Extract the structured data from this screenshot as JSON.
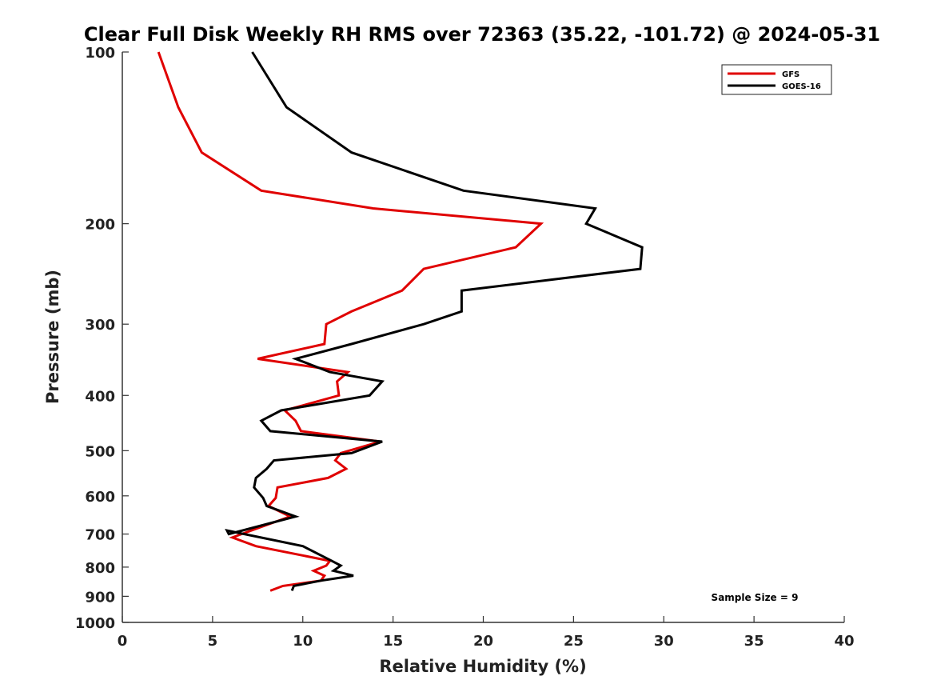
{
  "chart_data": {
    "type": "line",
    "title": "Clear Full Disk Weekly RH RMS over 72363 (35.22, -101.72) @ 2024-05-31",
    "xlabel": "Relative Humidity (%)",
    "ylabel": "Pressure (mb)",
    "xlim": [
      0,
      40
    ],
    "ylim": [
      100,
      1000
    ],
    "yscale": "log",
    "y_reversed": true,
    "xticks": [
      0,
      5,
      10,
      15,
      20,
      25,
      30,
      35,
      40
    ],
    "xtick_labels": [
      "0",
      "5",
      "10",
      "15",
      "20",
      "25",
      "30",
      "35",
      "40"
    ],
    "yticks": [
      100,
      200,
      300,
      400,
      500,
      600,
      700,
      800,
      900,
      1000
    ],
    "ytick_labels": [
      "100",
      "200",
      "300",
      "400",
      "500",
      "600",
      "700",
      "800",
      "900",
      "1000"
    ],
    "grid": false,
    "legend_position": "top-right",
    "annotation": "Sample Size = 9",
    "series": [
      {
        "name": "GFS",
        "color": "#e00000",
        "points": [
          [
            2.0,
            100
          ],
          [
            3.1,
            125
          ],
          [
            4.4,
            150
          ],
          [
            7.7,
            175
          ],
          [
            13.9,
            188
          ],
          [
            23.2,
            200
          ],
          [
            21.8,
            220
          ],
          [
            16.7,
            240
          ],
          [
            15.5,
            262
          ],
          [
            12.7,
            285
          ],
          [
            11.3,
            300
          ],
          [
            11.2,
            325
          ],
          [
            7.5,
            345
          ],
          [
            12.5,
            364
          ],
          [
            11.9,
            378
          ],
          [
            12.0,
            400
          ],
          [
            9.0,
            425
          ],
          [
            9.6,
            443
          ],
          [
            9.9,
            462
          ],
          [
            14.3,
            482
          ],
          [
            12.1,
            505
          ],
          [
            11.8,
            520
          ],
          [
            12.4,
            538
          ],
          [
            11.4,
            558
          ],
          [
            8.6,
            580
          ],
          [
            8.5,
            605
          ],
          [
            8.1,
            625
          ],
          [
            9.3,
            652
          ],
          [
            6.6,
            700
          ],
          [
            6.1,
            710
          ],
          [
            7.4,
            735
          ],
          [
            11.5,
            780
          ],
          [
            11.3,
            795
          ],
          [
            10.6,
            812
          ],
          [
            11.2,
            828
          ],
          [
            11.0,
            845
          ],
          [
            8.9,
            863
          ],
          [
            8.2,
            880
          ]
        ]
      },
      {
        "name": "GOES-16",
        "color": "#000000",
        "points": [
          [
            7.2,
            100
          ],
          [
            9.1,
            125
          ],
          [
            12.7,
            150
          ],
          [
            18.9,
            175
          ],
          [
            26.2,
            188
          ],
          [
            25.7,
            200
          ],
          [
            28.8,
            220
          ],
          [
            28.7,
            240
          ],
          [
            18.8,
            262
          ],
          [
            18.8,
            285
          ],
          [
            16.7,
            300
          ],
          [
            12.7,
            325
          ],
          [
            9.6,
            345
          ],
          [
            11.5,
            364
          ],
          [
            14.4,
            378
          ],
          [
            13.7,
            400
          ],
          [
            8.8,
            425
          ],
          [
            7.7,
            443
          ],
          [
            8.2,
            462
          ],
          [
            14.4,
            482
          ],
          [
            12.7,
            505
          ],
          [
            8.4,
            520
          ],
          [
            8.0,
            538
          ],
          [
            7.4,
            558
          ],
          [
            7.3,
            580
          ],
          [
            7.8,
            605
          ],
          [
            8.0,
            625
          ],
          [
            9.6,
            652
          ],
          [
            5.9,
            700
          ],
          [
            5.8,
            690
          ],
          [
            10.0,
            735
          ],
          [
            11.6,
            780
          ],
          [
            12.1,
            795
          ],
          [
            11.7,
            812
          ],
          [
            12.8,
            828
          ],
          [
            11.0,
            845
          ],
          [
            9.5,
            863
          ],
          [
            9.4,
            880
          ]
        ]
      }
    ]
  }
}
